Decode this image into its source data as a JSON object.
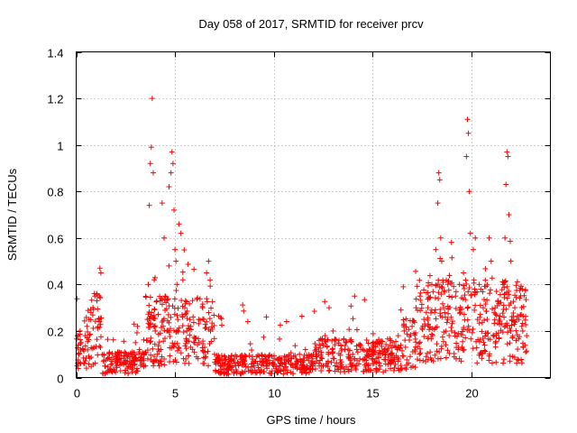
{
  "chart_data": {
    "type": "scatter",
    "title": "Day 058 of 2017, SRMTID for receiver prcv",
    "xlabel": "GPS time / hours",
    "ylabel": "SRMTID / TECUs",
    "xlim": [
      0,
      24
    ],
    "ylim": [
      0,
      1.4
    ],
    "xticks": [
      0,
      5,
      10,
      15,
      20
    ],
    "xtick_labels": [
      "0",
      "5",
      "10",
      "15",
      "20"
    ],
    "yticks": [
      0,
      0.2,
      0.4,
      0.6,
      0.8,
      1.0,
      1.2,
      1.4
    ],
    "ytick_labels": [
      "0",
      "0.2",
      "0.4",
      "0.6",
      "0.8",
      "1",
      "1.2",
      "1.4"
    ],
    "grid": true,
    "marker": "plus",
    "color": "#ff0000",
    "series": [
      {
        "name": "SRMTID",
        "x_range_hours": [
          0,
          22.8
        ],
        "points": [
          [
            0.05,
            0.05
          ],
          [
            0.15,
            0.1
          ],
          [
            0.25,
            0.15
          ],
          [
            0.35,
            0.12
          ],
          [
            0.45,
            0.18
          ],
          [
            0.55,
            0.22
          ],
          [
            0.65,
            0.25
          ],
          [
            0.75,
            0.28
          ],
          [
            0.85,
            0.3
          ],
          [
            0.95,
            0.35
          ],
          [
            1.05,
            0.33
          ],
          [
            1.15,
            0.25
          ],
          [
            1.2,
            0.47
          ],
          [
            1.25,
            0.45
          ],
          [
            1.4,
            0.1
          ],
          [
            1.6,
            0.08
          ],
          [
            1.8,
            0.07
          ],
          [
            2.0,
            0.06
          ],
          [
            2.2,
            0.08
          ],
          [
            2.4,
            0.06
          ],
          [
            2.6,
            0.09
          ],
          [
            2.8,
            0.1
          ],
          [
            3.0,
            0.15
          ],
          [
            3.1,
            0.22
          ],
          [
            3.2,
            0.12
          ],
          [
            3.4,
            0.08
          ],
          [
            3.5,
            0.05
          ],
          [
            3.6,
            0.25
          ],
          [
            3.65,
            0.4
          ],
          [
            3.7,
            0.74
          ],
          [
            3.75,
            0.92
          ],
          [
            3.8,
            0.99
          ],
          [
            3.85,
            1.2
          ],
          [
            3.9,
            0.88
          ],
          [
            3.95,
            0.42
          ],
          [
            4.0,
            0.2
          ],
          [
            4.1,
            0.1
          ],
          [
            4.2,
            0.05
          ],
          [
            4.35,
            0.75
          ],
          [
            4.45,
            0.6
          ],
          [
            4.5,
            0.35
          ],
          [
            4.6,
            0.2
          ],
          [
            4.7,
            0.82
          ],
          [
            4.8,
            0.88
          ],
          [
            4.85,
            0.97
          ],
          [
            4.9,
            0.92
          ],
          [
            4.95,
            0.72
          ],
          [
            5.0,
            0.55
          ],
          [
            5.05,
            0.5
          ],
          [
            5.1,
            0.4
          ],
          [
            5.2,
            0.66
          ],
          [
            5.3,
            0.62
          ],
          [
            5.4,
            0.42
          ],
          [
            5.5,
            0.3
          ],
          [
            5.6,
            0.2
          ],
          [
            5.8,
            0.22
          ],
          [
            6.0,
            0.15
          ],
          [
            6.2,
            0.25
          ],
          [
            6.4,
            0.3
          ],
          [
            6.6,
            0.45
          ],
          [
            6.7,
            0.5
          ],
          [
            6.8,
            0.2
          ],
          [
            7.0,
            0.1
          ],
          [
            7.2,
            0.08
          ],
          [
            7.5,
            0.06
          ],
          [
            7.8,
            0.05
          ],
          [
            8.0,
            0.08
          ],
          [
            8.3,
            0.06
          ],
          [
            8.6,
            0.09
          ],
          [
            9.0,
            0.05
          ],
          [
            9.3,
            0.07
          ],
          [
            9.6,
            0.06
          ],
          [
            10.0,
            0.05
          ],
          [
            10.3,
            0.08
          ],
          [
            10.6,
            0.06
          ],
          [
            11.0,
            0.09
          ],
          [
            11.3,
            0.1
          ],
          [
            11.6,
            0.12
          ],
          [
            12.0,
            0.1
          ],
          [
            12.3,
            0.14
          ],
          [
            12.6,
            0.18
          ],
          [
            12.8,
            0.3
          ],
          [
            13.0,
            0.2
          ],
          [
            13.3,
            0.16
          ],
          [
            13.6,
            0.12
          ],
          [
            14.0,
            0.1
          ],
          [
            14.3,
            0.14
          ],
          [
            14.6,
            0.08
          ],
          [
            15.0,
            0.06
          ],
          [
            15.3,
            0.1
          ],
          [
            15.6,
            0.12
          ],
          [
            16.0,
            0.15
          ],
          [
            16.3,
            0.18
          ],
          [
            16.6,
            0.2
          ],
          [
            17.0,
            0.22
          ],
          [
            17.2,
            0.3
          ],
          [
            17.4,
            0.35
          ],
          [
            17.6,
            0.25
          ],
          [
            17.8,
            0.3
          ],
          [
            18.0,
            0.4
          ],
          [
            18.2,
            0.55
          ],
          [
            18.3,
            0.75
          ],
          [
            18.35,
            0.88
          ],
          [
            18.4,
            0.85
          ],
          [
            18.45,
            0.6
          ],
          [
            18.5,
            0.5
          ],
          [
            18.6,
            0.3
          ],
          [
            18.8,
            0.25
          ],
          [
            19.0,
            0.2
          ],
          [
            19.2,
            0.35
          ],
          [
            19.4,
            0.4
          ],
          [
            19.6,
            0.45
          ],
          [
            19.75,
            0.95
          ],
          [
            19.8,
            1.11
          ],
          [
            19.85,
            1.05
          ],
          [
            19.9,
            0.8
          ],
          [
            19.95,
            0.62
          ],
          [
            20.1,
            0.55
          ],
          [
            20.2,
            0.6
          ],
          [
            20.4,
            0.4
          ],
          [
            20.6,
            0.3
          ],
          [
            20.8,
            0.25
          ],
          [
            20.9,
            0.6
          ],
          [
            21.0,
            0.5
          ],
          [
            21.2,
            0.3
          ],
          [
            21.4,
            0.25
          ],
          [
            21.6,
            0.4
          ],
          [
            21.7,
            0.6
          ],
          [
            21.75,
            0.83
          ],
          [
            21.8,
            0.97
          ],
          [
            21.85,
            0.95
          ],
          [
            21.9,
            0.7
          ],
          [
            22.0,
            0.5
          ],
          [
            22.2,
            0.3
          ],
          [
            22.4,
            0.25
          ],
          [
            22.6,
            0.2
          ],
          [
            22.8,
            0.18
          ]
        ]
      }
    ]
  }
}
